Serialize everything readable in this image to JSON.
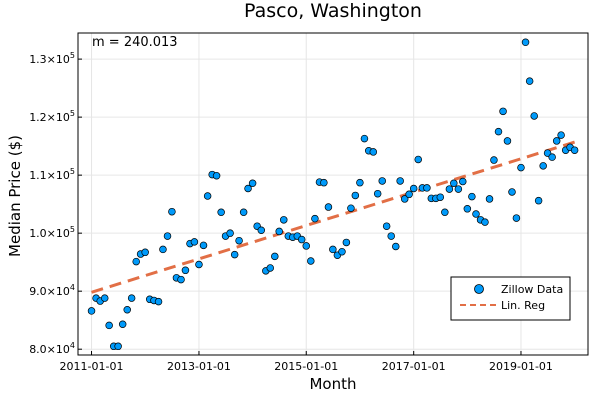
{
  "chart_data": {
    "type": "scatter",
    "title": "Pasco, Washington",
    "xlabel": "Month",
    "ylabel": "Median Price ($)",
    "annotation": "m = 240.013",
    "x_ticks": [
      "2011-01-01",
      "2013-01-01",
      "2015-01-01",
      "2017-01-01",
      "2019-01-01"
    ],
    "y_ticks": [
      {
        "value": 80000,
        "mant": "8.0",
        "exp": "4"
      },
      {
        "value": 90000,
        "mant": "9.0",
        "exp": "4"
      },
      {
        "value": 100000,
        "mant": "1.0",
        "exp": "5"
      },
      {
        "value": 110000,
        "mant": "1.1",
        "exp": "5"
      },
      {
        "value": 120000,
        "mant": "1.2",
        "exp": "5"
      },
      {
        "value": 130000,
        "mant": "1.3",
        "exp": "5"
      }
    ],
    "xlim": [
      "2010-10-01",
      "2020-04-01"
    ],
    "ylim": [
      79000,
      134500
    ],
    "grid": true,
    "legend_position": "bottom-right",
    "series": [
      {
        "name": "Zillow Data",
        "kind": "scatter",
        "color": "#009AFA",
        "points": [
          [
            "2011-01-01",
            86600
          ],
          [
            "2011-02-01",
            88800
          ],
          [
            "2011-03-01",
            88300
          ],
          [
            "2011-04-01",
            88800
          ],
          [
            "2011-05-01",
            84100
          ],
          [
            "2011-06-01",
            80500
          ],
          [
            "2011-07-01",
            80500
          ],
          [
            "2011-08-01",
            84300
          ],
          [
            "2011-09-01",
            86800
          ],
          [
            "2011-10-01",
            88800
          ],
          [
            "2011-11-01",
            95100
          ],
          [
            "2011-12-01",
            96400
          ],
          [
            "2012-01-01",
            96700
          ],
          [
            "2012-02-01",
            88600
          ],
          [
            "2012-03-01",
            88400
          ],
          [
            "2012-04-01",
            88200
          ],
          [
            "2012-05-01",
            97200
          ],
          [
            "2012-06-01",
            99500
          ],
          [
            "2012-07-01",
            103700
          ],
          [
            "2012-08-01",
            92300
          ],
          [
            "2012-09-01",
            92000
          ],
          [
            "2012-10-01",
            93600
          ],
          [
            "2012-11-01",
            98200
          ],
          [
            "2012-12-01",
            98500
          ],
          [
            "2013-01-01",
            94600
          ],
          [
            "2013-02-01",
            97900
          ],
          [
            "2013-03-01",
            106400
          ],
          [
            "2013-04-01",
            110100
          ],
          [
            "2013-05-01",
            109900
          ],
          [
            "2013-06-01",
            103600
          ],
          [
            "2013-07-01",
            99500
          ],
          [
            "2013-08-01",
            100000
          ],
          [
            "2013-09-01",
            96300
          ],
          [
            "2013-10-01",
            98700
          ],
          [
            "2013-11-01",
            103600
          ],
          [
            "2013-12-01",
            107700
          ],
          [
            "2014-01-01",
            108600
          ],
          [
            "2014-02-01",
            101200
          ],
          [
            "2014-03-01",
            100500
          ],
          [
            "2014-04-01",
            93500
          ],
          [
            "2014-05-01",
            94000
          ],
          [
            "2014-06-01",
            96000
          ],
          [
            "2014-07-01",
            100300
          ],
          [
            "2014-08-01",
            102300
          ],
          [
            "2014-09-01",
            99500
          ],
          [
            "2014-10-01",
            99300
          ],
          [
            "2014-11-01",
            99500
          ],
          [
            "2014-12-01",
            98900
          ],
          [
            "2015-01-01",
            97800
          ],
          [
            "2015-02-01",
            95200
          ],
          [
            "2015-03-01",
            102500
          ],
          [
            "2015-04-01",
            108800
          ],
          [
            "2015-05-01",
            108700
          ],
          [
            "2015-06-01",
            104500
          ],
          [
            "2015-07-01",
            97200
          ],
          [
            "2015-08-01",
            96200
          ],
          [
            "2015-09-01",
            96800
          ],
          [
            "2015-10-01",
            98400
          ],
          [
            "2015-11-01",
            104300
          ],
          [
            "2015-12-01",
            106500
          ],
          [
            "2016-01-01",
            108700
          ],
          [
            "2016-02-01",
            116300
          ],
          [
            "2016-03-01",
            114200
          ],
          [
            "2016-04-01",
            114000
          ],
          [
            "2016-05-01",
            106800
          ],
          [
            "2016-06-01",
            109000
          ],
          [
            "2016-07-01",
            101200
          ],
          [
            "2016-08-01",
            99500
          ],
          [
            "2016-09-01",
            97700
          ],
          [
            "2016-10-01",
            109000
          ],
          [
            "2016-11-01",
            105900
          ],
          [
            "2016-12-01",
            106700
          ],
          [
            "2017-01-01",
            107700
          ],
          [
            "2017-02-01",
            112700
          ],
          [
            "2017-03-01",
            107800
          ],
          [
            "2017-04-01",
            107800
          ],
          [
            "2017-05-01",
            106000
          ],
          [
            "2017-06-01",
            106000
          ],
          [
            "2017-07-01",
            106200
          ],
          [
            "2017-08-01",
            103600
          ],
          [
            "2017-09-01",
            107600
          ],
          [
            "2017-10-01",
            108600
          ],
          [
            "2017-11-01",
            107600
          ],
          [
            "2017-12-01",
            108900
          ],
          [
            "2018-01-01",
            104200
          ],
          [
            "2018-02-01",
            106300
          ],
          [
            "2018-03-01",
            103300
          ],
          [
            "2018-04-01",
            102300
          ],
          [
            "2018-05-01",
            101900
          ],
          [
            "2018-06-01",
            105900
          ],
          [
            "2018-07-01",
            112600
          ],
          [
            "2018-08-01",
            117500
          ],
          [
            "2018-09-01",
            121000
          ],
          [
            "2018-10-01",
            115900
          ],
          [
            "2018-11-01",
            107100
          ],
          [
            "2018-12-01",
            102600
          ],
          [
            "2019-01-01",
            111300
          ],
          [
            "2019-02-01",
            132900
          ],
          [
            "2019-03-01",
            126200
          ],
          [
            "2019-04-01",
            120200
          ],
          [
            "2019-05-01",
            105600
          ],
          [
            "2019-06-01",
            111600
          ],
          [
            "2019-07-01",
            113800
          ],
          [
            "2019-08-01",
            113100
          ],
          [
            "2019-09-01",
            115900
          ],
          [
            "2019-10-01",
            116900
          ],
          [
            "2019-11-01",
            114300
          ],
          [
            "2019-12-01",
            114800
          ],
          [
            "2020-01-01",
            114300
          ]
        ]
      },
      {
        "name": "Lin. Reg",
        "kind": "line",
        "style": "dashed",
        "color": "#E26F46",
        "points": [
          [
            "2011-01-01",
            89800
          ],
          [
            "2020-01-01",
            115700
          ]
        ]
      }
    ]
  }
}
